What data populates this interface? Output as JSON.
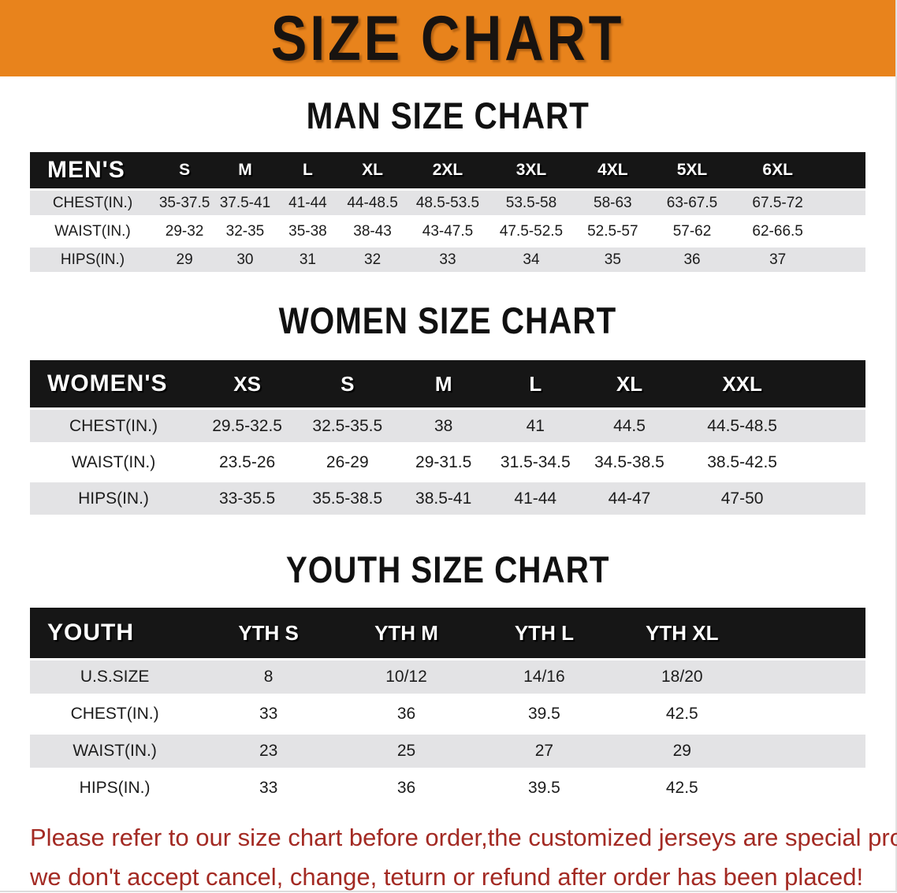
{
  "banner": {
    "title": "SIZE CHART"
  },
  "colors": {
    "banner_bg": "#e8831c",
    "header_bg": "#161616",
    "row_gray": "#e3e3e5",
    "disclaimer_red": "#a32a23"
  },
  "sections": {
    "men": {
      "heading": "MAN SIZE CHART",
      "table": {
        "header": [
          "MEN'S",
          "S",
          "M",
          "L",
          "XL",
          "2XL",
          "3XL",
          "4XL",
          "5XL",
          "6XL"
        ],
        "rows": [
          {
            "label": "CHEST(IN.)",
            "values": [
              "35-37.5",
              "37.5-41",
              "41-44",
              "44-48.5",
              "48.5-53.5",
              "53.5-58",
              "58-63",
              "63-67.5",
              "67.5-72"
            ]
          },
          {
            "label": "WAIST(IN.)",
            "values": [
              "29-32",
              "32-35",
              "35-38",
              "38-43",
              "43-47.5",
              "47.5-52.5",
              "52.5-57",
              "57-62",
              "62-66.5"
            ]
          },
          {
            "label": "HIPS(IN.)",
            "values": [
              "29",
              "30",
              "31",
              "32",
              "33",
              "34",
              "35",
              "36",
              "37"
            ]
          }
        ]
      }
    },
    "women": {
      "heading": "WOMEN SIZE CHART",
      "table": {
        "header": [
          "WOMEN'S",
          "XS",
          "S",
          "M",
          "L",
          "XL",
          "XXL"
        ],
        "rows": [
          {
            "label": "CHEST(IN.)",
            "values": [
              "29.5-32.5",
              "32.5-35.5",
              "38",
              "41",
              "44.5",
              "44.5-48.5"
            ]
          },
          {
            "label": "WAIST(IN.)",
            "values": [
              "23.5-26",
              "26-29",
              "29-31.5",
              "31.5-34.5",
              "34.5-38.5",
              "38.5-42.5"
            ]
          },
          {
            "label": "HIPS(IN.)",
            "values": [
              "33-35.5",
              "35.5-38.5",
              "38.5-41",
              "41-44",
              "44-47",
              "47-50"
            ]
          }
        ]
      }
    },
    "youth": {
      "heading": "YOUTH SIZE CHART",
      "table": {
        "header": [
          "YOUTH",
          "YTH S",
          "YTH M",
          "YTH L",
          "YTH XL"
        ],
        "rows": [
          {
            "label": "U.S.SIZE",
            "values": [
              "8",
              "10/12",
              "14/16",
              "18/20"
            ]
          },
          {
            "label": "CHEST(IN.)",
            "values": [
              "33",
              "36",
              "39.5",
              "42.5"
            ]
          },
          {
            "label": "WAIST(IN.)",
            "values": [
              "23",
              "25",
              "27",
              "29"
            ]
          },
          {
            "label": "HIPS(IN.)",
            "values": [
              "33",
              "36",
              "39.5",
              "42.5"
            ]
          }
        ]
      }
    }
  },
  "disclaimer": {
    "line1": "Please refer to our size chart before order,the customized jerseys are special products,",
    "line2": "we don't accept cancel, change, teturn or refund after order has been placed!"
  }
}
